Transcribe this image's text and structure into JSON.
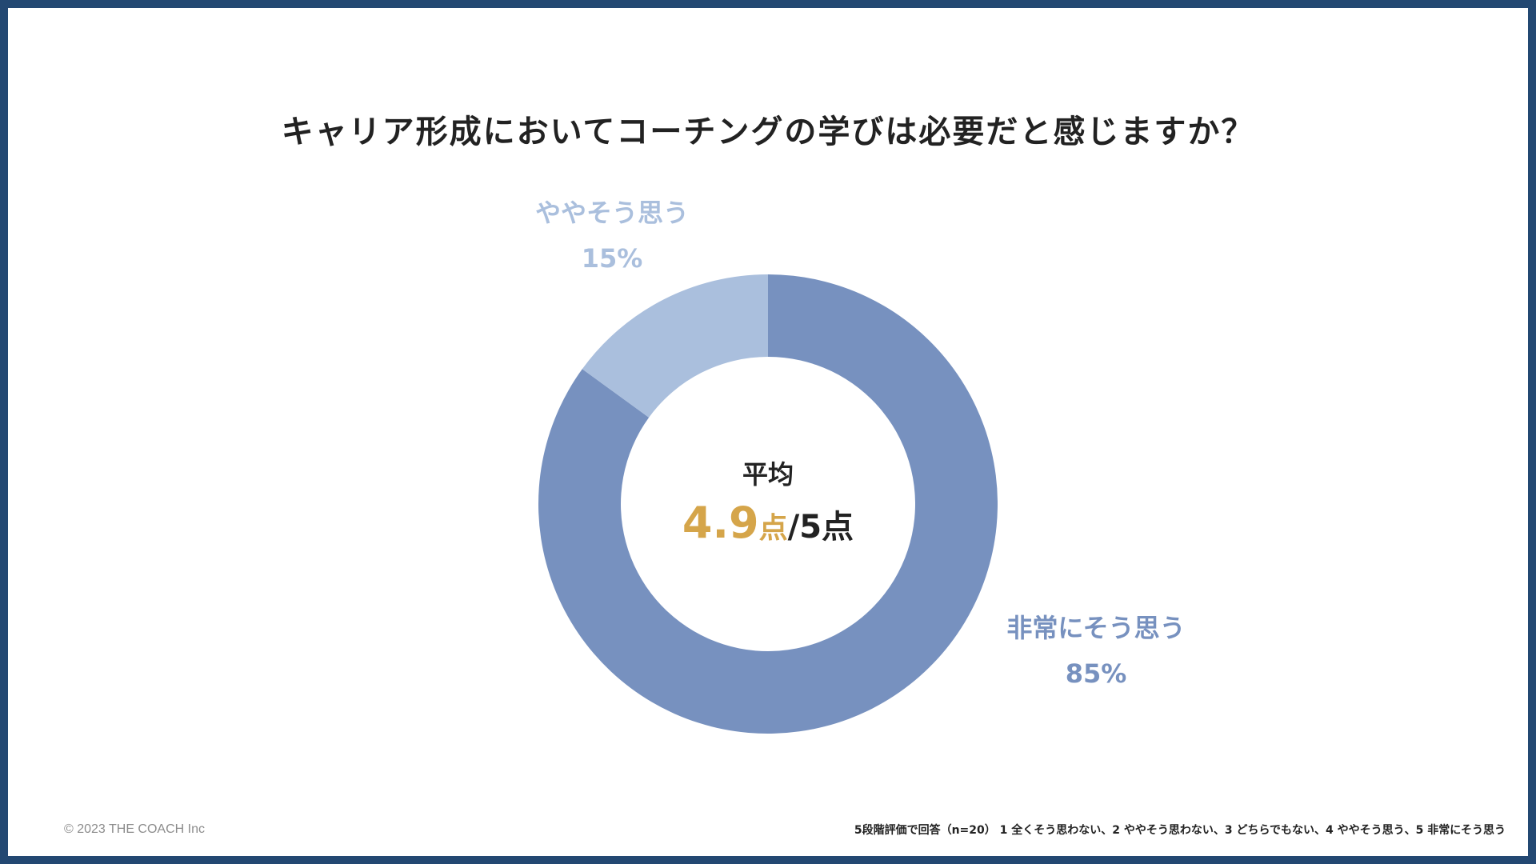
{
  "title": "キャリア形成においてコーチングの学びは必要だと感じますか？",
  "center": {
    "label": "平均",
    "score": "4.9",
    "score_unit": "点",
    "separator": "/",
    "max": "5点"
  },
  "footer": {
    "copyright": "© 2023 THE COACH Inc",
    "note": "5段階評価で回答（n=20） 1 全くそう思わない、2 ややそう思わない、3 どちらでもない、4 ややそう思う、5 非常にそう思う"
  },
  "chart_data": {
    "type": "pie",
    "donut": true,
    "title": "キャリア形成においてコーチングの学びは必要だと感じますか？",
    "categories": [
      "非常にそう思う",
      "ややそう思う"
    ],
    "values": [
      85,
      15
    ],
    "value_labels": [
      "85%",
      "15%"
    ],
    "colors": [
      "#7791bf",
      "#aabfdd"
    ],
    "start_angle_deg": 0,
    "direction": "clockwise"
  }
}
